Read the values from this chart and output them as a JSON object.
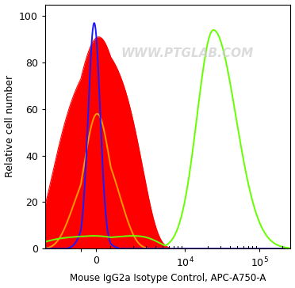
{
  "xlabel": "Mouse IgG2a Isotype Control, APC-A750-A",
  "ylabel": "Relative cell number",
  "watermark": "WWW.PTGLAB.COM",
  "xlim_left": -3000,
  "xlim_right": 260000,
  "ylim": [
    0,
    105
  ],
  "yticks": [
    0,
    20,
    40,
    60,
    80,
    100
  ],
  "linthresh": 1000,
  "linscale": 0.18,
  "background_color": "#ffffff",
  "blue": {
    "color": "#1a1aff",
    "peak_x": -100,
    "peak_y": 97,
    "sigma": 400,
    "lw": 1.4
  },
  "orange": {
    "color": "#ff9900",
    "peak_x": 100,
    "peak_y": 58,
    "sigma": 900,
    "lw": 1.4
  },
  "red": {
    "color": "#ff0000",
    "peak_x": 200,
    "peak_y": 91,
    "sigma": 1800,
    "lw": 0.8,
    "alpha": 1.0
  },
  "green": {
    "color": "#66ff00",
    "log_peak": 4.38,
    "peak_y": 94,
    "log_sigma": 0.22,
    "log_sigma2": 0.3,
    "lw": 1.4,
    "tail_start_log": 3.5,
    "tail_y": 5.5
  }
}
